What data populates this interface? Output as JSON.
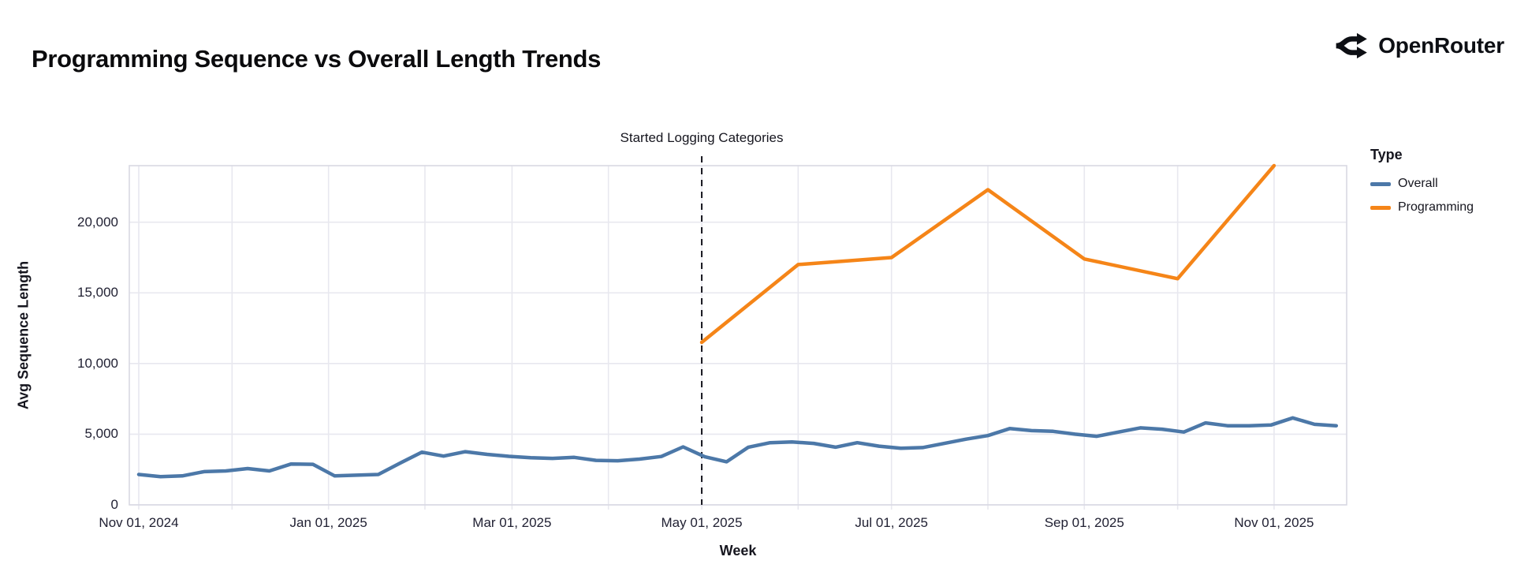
{
  "header": {
    "title": "Programming Sequence vs Overall Length Trends",
    "brand": "OpenRouter"
  },
  "chart_data": {
    "type": "line",
    "title": "Programming Sequence vs Overall Length Trends",
    "xlabel": "Week",
    "ylabel": "Avg Sequence Length",
    "legend_title": "Type",
    "legend_position": "right",
    "grid": true,
    "ylim": [
      0,
      24000
    ],
    "y_ticks": [
      {
        "value": 0,
        "label": "0"
      },
      {
        "value": 5000,
        "label": "5,000"
      },
      {
        "value": 10000,
        "label": "10,000"
      },
      {
        "value": 15000,
        "label": "15,000"
      },
      {
        "value": 20000,
        "label": "20,000"
      }
    ],
    "x_ticks": [
      {
        "date": "2024-11-01",
        "label": "Nov 01, 2024"
      },
      {
        "date": "2025-01-01",
        "label": "Jan 01, 2025"
      },
      {
        "date": "2025-03-01",
        "label": "Mar 01, 2025"
      },
      {
        "date": "2025-05-01",
        "label": "May 01, 2025"
      },
      {
        "date": "2025-07-01",
        "label": "Jul 01, 2025"
      },
      {
        "date": "2025-09-01",
        "label": "Sep 01, 2025"
      },
      {
        "date": "2025-11-01",
        "label": "Nov 01, 2025"
      }
    ],
    "x_gridline_months": [
      "2024-11-01",
      "2024-12-01",
      "2025-01-01",
      "2025-02-01",
      "2025-03-01",
      "2025-04-01",
      "2025-05-01",
      "2025-06-01",
      "2025-07-01",
      "2025-08-01",
      "2025-09-01",
      "2025-10-01",
      "2025-11-01"
    ],
    "annotation": {
      "label": "Started Logging Categories",
      "date": "2025-05-01",
      "style": "dashed-vertical-rule"
    },
    "series": [
      {
        "name": "Overall",
        "color": "#4c78a8",
        "x": [
          "2024-11-01",
          "2024-11-08",
          "2024-11-15",
          "2024-11-22",
          "2024-11-29",
          "2024-12-06",
          "2024-12-13",
          "2024-12-20",
          "2024-12-27",
          "2025-01-03",
          "2025-01-10",
          "2025-01-17",
          "2025-01-24",
          "2025-01-31",
          "2025-02-07",
          "2025-02-14",
          "2025-02-21",
          "2025-02-28",
          "2025-03-07",
          "2025-03-14",
          "2025-03-21",
          "2025-03-28",
          "2025-04-04",
          "2025-04-11",
          "2025-04-18",
          "2025-04-25",
          "2025-05-02",
          "2025-05-09",
          "2025-05-16",
          "2025-05-23",
          "2025-05-30",
          "2025-06-06",
          "2025-06-13",
          "2025-06-20",
          "2025-06-27",
          "2025-07-04",
          "2025-07-11",
          "2025-07-18",
          "2025-07-25",
          "2025-08-01",
          "2025-08-08",
          "2025-08-15",
          "2025-08-22",
          "2025-08-29",
          "2025-09-05",
          "2025-09-12",
          "2025-09-19",
          "2025-09-26",
          "2025-10-03",
          "2025-10-10",
          "2025-10-17",
          "2025-10-24",
          "2025-10-31",
          "2025-11-07",
          "2025-11-14",
          "2025-11-21"
        ],
        "values": [
          2150,
          2000,
          2050,
          2350,
          2400,
          2570,
          2400,
          2890,
          2870,
          2050,
          2100,
          2150,
          2950,
          3730,
          3450,
          3760,
          3570,
          3430,
          3340,
          3290,
          3360,
          3150,
          3120,
          3240,
          3420,
          4100,
          3400,
          3050,
          4080,
          4400,
          4450,
          4350,
          4080,
          4400,
          4150,
          4000,
          4050,
          4350,
          4650,
          4900,
          5400,
          5250,
          5200,
          5000,
          4850,
          5150,
          5450,
          5350,
          5150,
          5800,
          5600,
          5600,
          5650,
          6150,
          5700,
          5600
        ]
      },
      {
        "name": "Programming",
        "color": "#f58518",
        "x": [
          "2025-05-01",
          "2025-06-01",
          "2025-07-01",
          "2025-08-01",
          "2025-09-01",
          "2025-10-01",
          "2025-11-01"
        ],
        "values": [
          11500,
          17000,
          17500,
          22300,
          17400,
          16000,
          24000
        ]
      }
    ]
  },
  "theme": {
    "gridline_color": "#e8e8ef",
    "domain_border_color": "#d9d9e3",
    "tick_text_color": "#212133",
    "annotation_line_color": "#16161f",
    "background": "#ffffff"
  }
}
